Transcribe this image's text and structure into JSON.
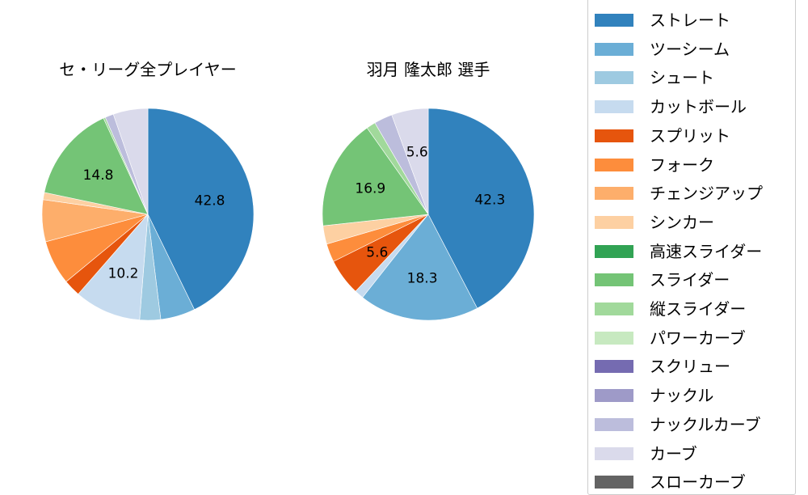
{
  "chart_data": [
    {
      "type": "pie",
      "title": "セ・リーグ全プレイヤー",
      "start_angle": "12 o'clock, clockwise",
      "categories": [
        "ストレート",
        "ツーシーム",
        "シュート",
        "カットボール",
        "スプリット",
        "フォーク",
        "チェンジアップ",
        "シンカー",
        "スライダー",
        "縦スライダー",
        "ナックルカーブ",
        "カーブ"
      ],
      "values": [
        42.8,
        5.3,
        3.2,
        10.2,
        2.6,
        6.8,
        6.4,
        1.1,
        14.8,
        0.3,
        1.3,
        5.3
      ],
      "colors": [
        "#3182bd",
        "#6baed6",
        "#9ecae1",
        "#c6dbef",
        "#e6550d",
        "#fd8d3c",
        "#fdae6b",
        "#fdd0a2",
        "#74c476",
        "#a1d99b",
        "#bcbddc",
        "#dadaeb"
      ],
      "labels_shown": {
        "ストレート": "42.8",
        "カットボール": "10.2",
        "スライダー": "14.8"
      }
    },
    {
      "type": "pie",
      "title": "羽月 隆太郎  選手",
      "start_angle": "12 o'clock, clockwise",
      "categories": [
        "ストレート",
        "ツーシーム",
        "カットボール",
        "スプリット",
        "フォーク",
        "シンカー",
        "スライダー",
        "縦スライダー",
        "ナックルカーブ",
        "カーブ"
      ],
      "values": [
        42.3,
        18.3,
        1.4,
        5.6,
        2.8,
        2.8,
        16.9,
        1.4,
        2.8,
        5.6
      ],
      "colors": [
        "#3182bd",
        "#6baed6",
        "#c6dbef",
        "#e6550d",
        "#fd8d3c",
        "#fdd0a2",
        "#74c476",
        "#a1d99b",
        "#bcbddc",
        "#dadaeb"
      ],
      "labels_shown": {
        "ストレート": "42.3",
        "ツーシーム": "18.3",
        "スプリット": "5.6",
        "スライダー": "16.9",
        "カーブ": "5.6"
      }
    }
  ],
  "titles": {
    "left": "セ・リーグ全プレイヤー",
    "right": "羽月 隆太郎  選手"
  },
  "legend": [
    {
      "label": "ストレート",
      "color": "#3182bd"
    },
    {
      "label": "ツーシーム",
      "color": "#6baed6"
    },
    {
      "label": "シュート",
      "color": "#9ecae1"
    },
    {
      "label": "カットボール",
      "color": "#c6dbef"
    },
    {
      "label": "スプリット",
      "color": "#e6550d"
    },
    {
      "label": "フォーク",
      "color": "#fd8d3c"
    },
    {
      "label": "チェンジアップ",
      "color": "#fdae6b"
    },
    {
      "label": "シンカー",
      "color": "#fdd0a2"
    },
    {
      "label": "高速スライダー",
      "color": "#31a354"
    },
    {
      "label": "スライダー",
      "color": "#74c476"
    },
    {
      "label": "縦スライダー",
      "color": "#a1d99b"
    },
    {
      "label": "パワーカーブ",
      "color": "#c7e9c0"
    },
    {
      "label": "スクリュー",
      "color": "#756bb1"
    },
    {
      "label": "ナックル",
      "color": "#9e9ac8"
    },
    {
      "label": "ナックルカーブ",
      "color": "#bcbddc"
    },
    {
      "label": "カーブ",
      "color": "#dadaeb"
    },
    {
      "label": "スローカーブ",
      "color": "#636363"
    }
  ]
}
